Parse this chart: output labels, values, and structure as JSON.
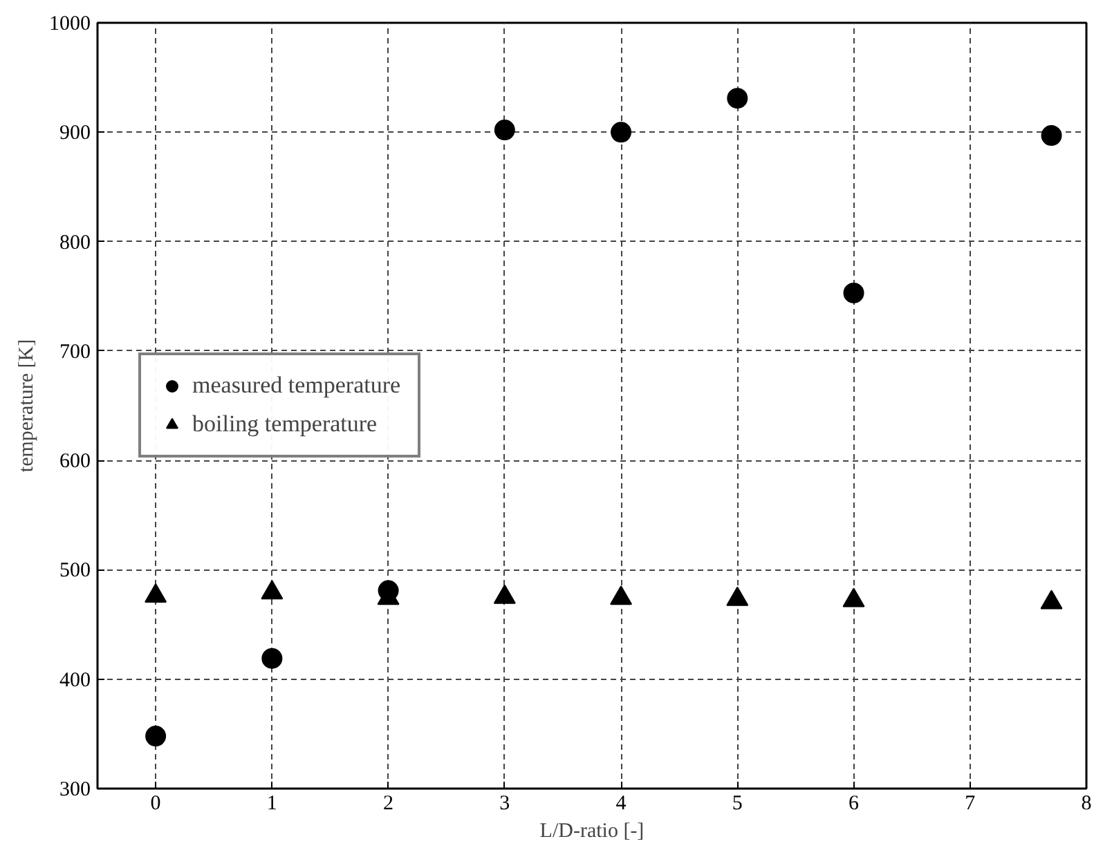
{
  "chart_data": {
    "type": "scatter",
    "xlabel": "L/D-ratio [-]",
    "ylabel": "temperature [K]",
    "series": [
      {
        "name": "measured temperature",
        "color": "#000000",
        "marker": "circle",
        "x": [
          0,
          1,
          2,
          3,
          4,
          5,
          6,
          7.7
        ],
        "values": [
          348,
          419,
          481,
          902,
          900,
          931,
          753,
          897
        ]
      },
      {
        "name": "boiling temperature",
        "color": "#000000",
        "marker": "triangle",
        "x": [
          0,
          1,
          2,
          3,
          4,
          5,
          6,
          7.7
        ],
        "values": [
          476,
          479,
          474,
          475,
          474,
          473,
          472,
          470
        ]
      }
    ],
    "xlim": [
      -0.5,
      8
    ],
    "xticks": [
      0,
      1,
      2,
      3,
      4,
      5,
      6,
      7,
      8
    ],
    "ylim": [
      300,
      1000
    ],
    "yticks": [
      300,
      400,
      500,
      600,
      700,
      800,
      900,
      1000
    ],
    "grid": true,
    "legend": "left"
  }
}
